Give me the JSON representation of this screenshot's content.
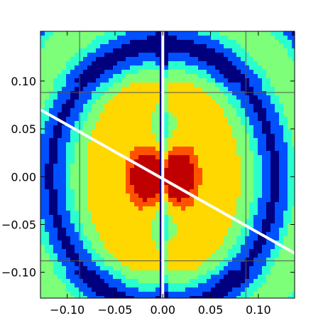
{
  "chart_data": {
    "type": "heatmap",
    "title": "",
    "xlabel": "",
    "ylabel": "",
    "xlim": [
      -0.128,
      0.138
    ],
    "ylim": [
      -0.127,
      0.152
    ],
    "x_ticks": [
      -0.1,
      -0.05,
      0.0,
      0.05,
      0.1
    ],
    "x_tick_labels": [
      "−0.10",
      "−0.05",
      "0.00",
      "0.05",
      "0.10"
    ],
    "y_ticks": [
      -0.1,
      -0.05,
      0.0,
      0.05,
      0.1
    ],
    "y_tick_labels": [
      "−0.10",
      "−0.05",
      "0.00",
      "0.05",
      "0.10"
    ],
    "grid": true,
    "grid_x": [
      -0.087,
      0.087
    ],
    "grid_y": [
      -0.088,
      0.088
    ],
    "colormap": [
      "#00007f",
      "#0050ff",
      "#29ffce",
      "#7dff7a",
      "#ffd800",
      "#ff5200",
      "#c00000"
    ],
    "vertical_line": {
      "x": 0.0,
      "color": "#ffffff"
    },
    "diagonal_line": {
      "x": [
        -0.128,
        0.138
      ],
      "y": [
        0.07,
        -0.08
      ],
      "color": "#ffffff"
    }
  }
}
